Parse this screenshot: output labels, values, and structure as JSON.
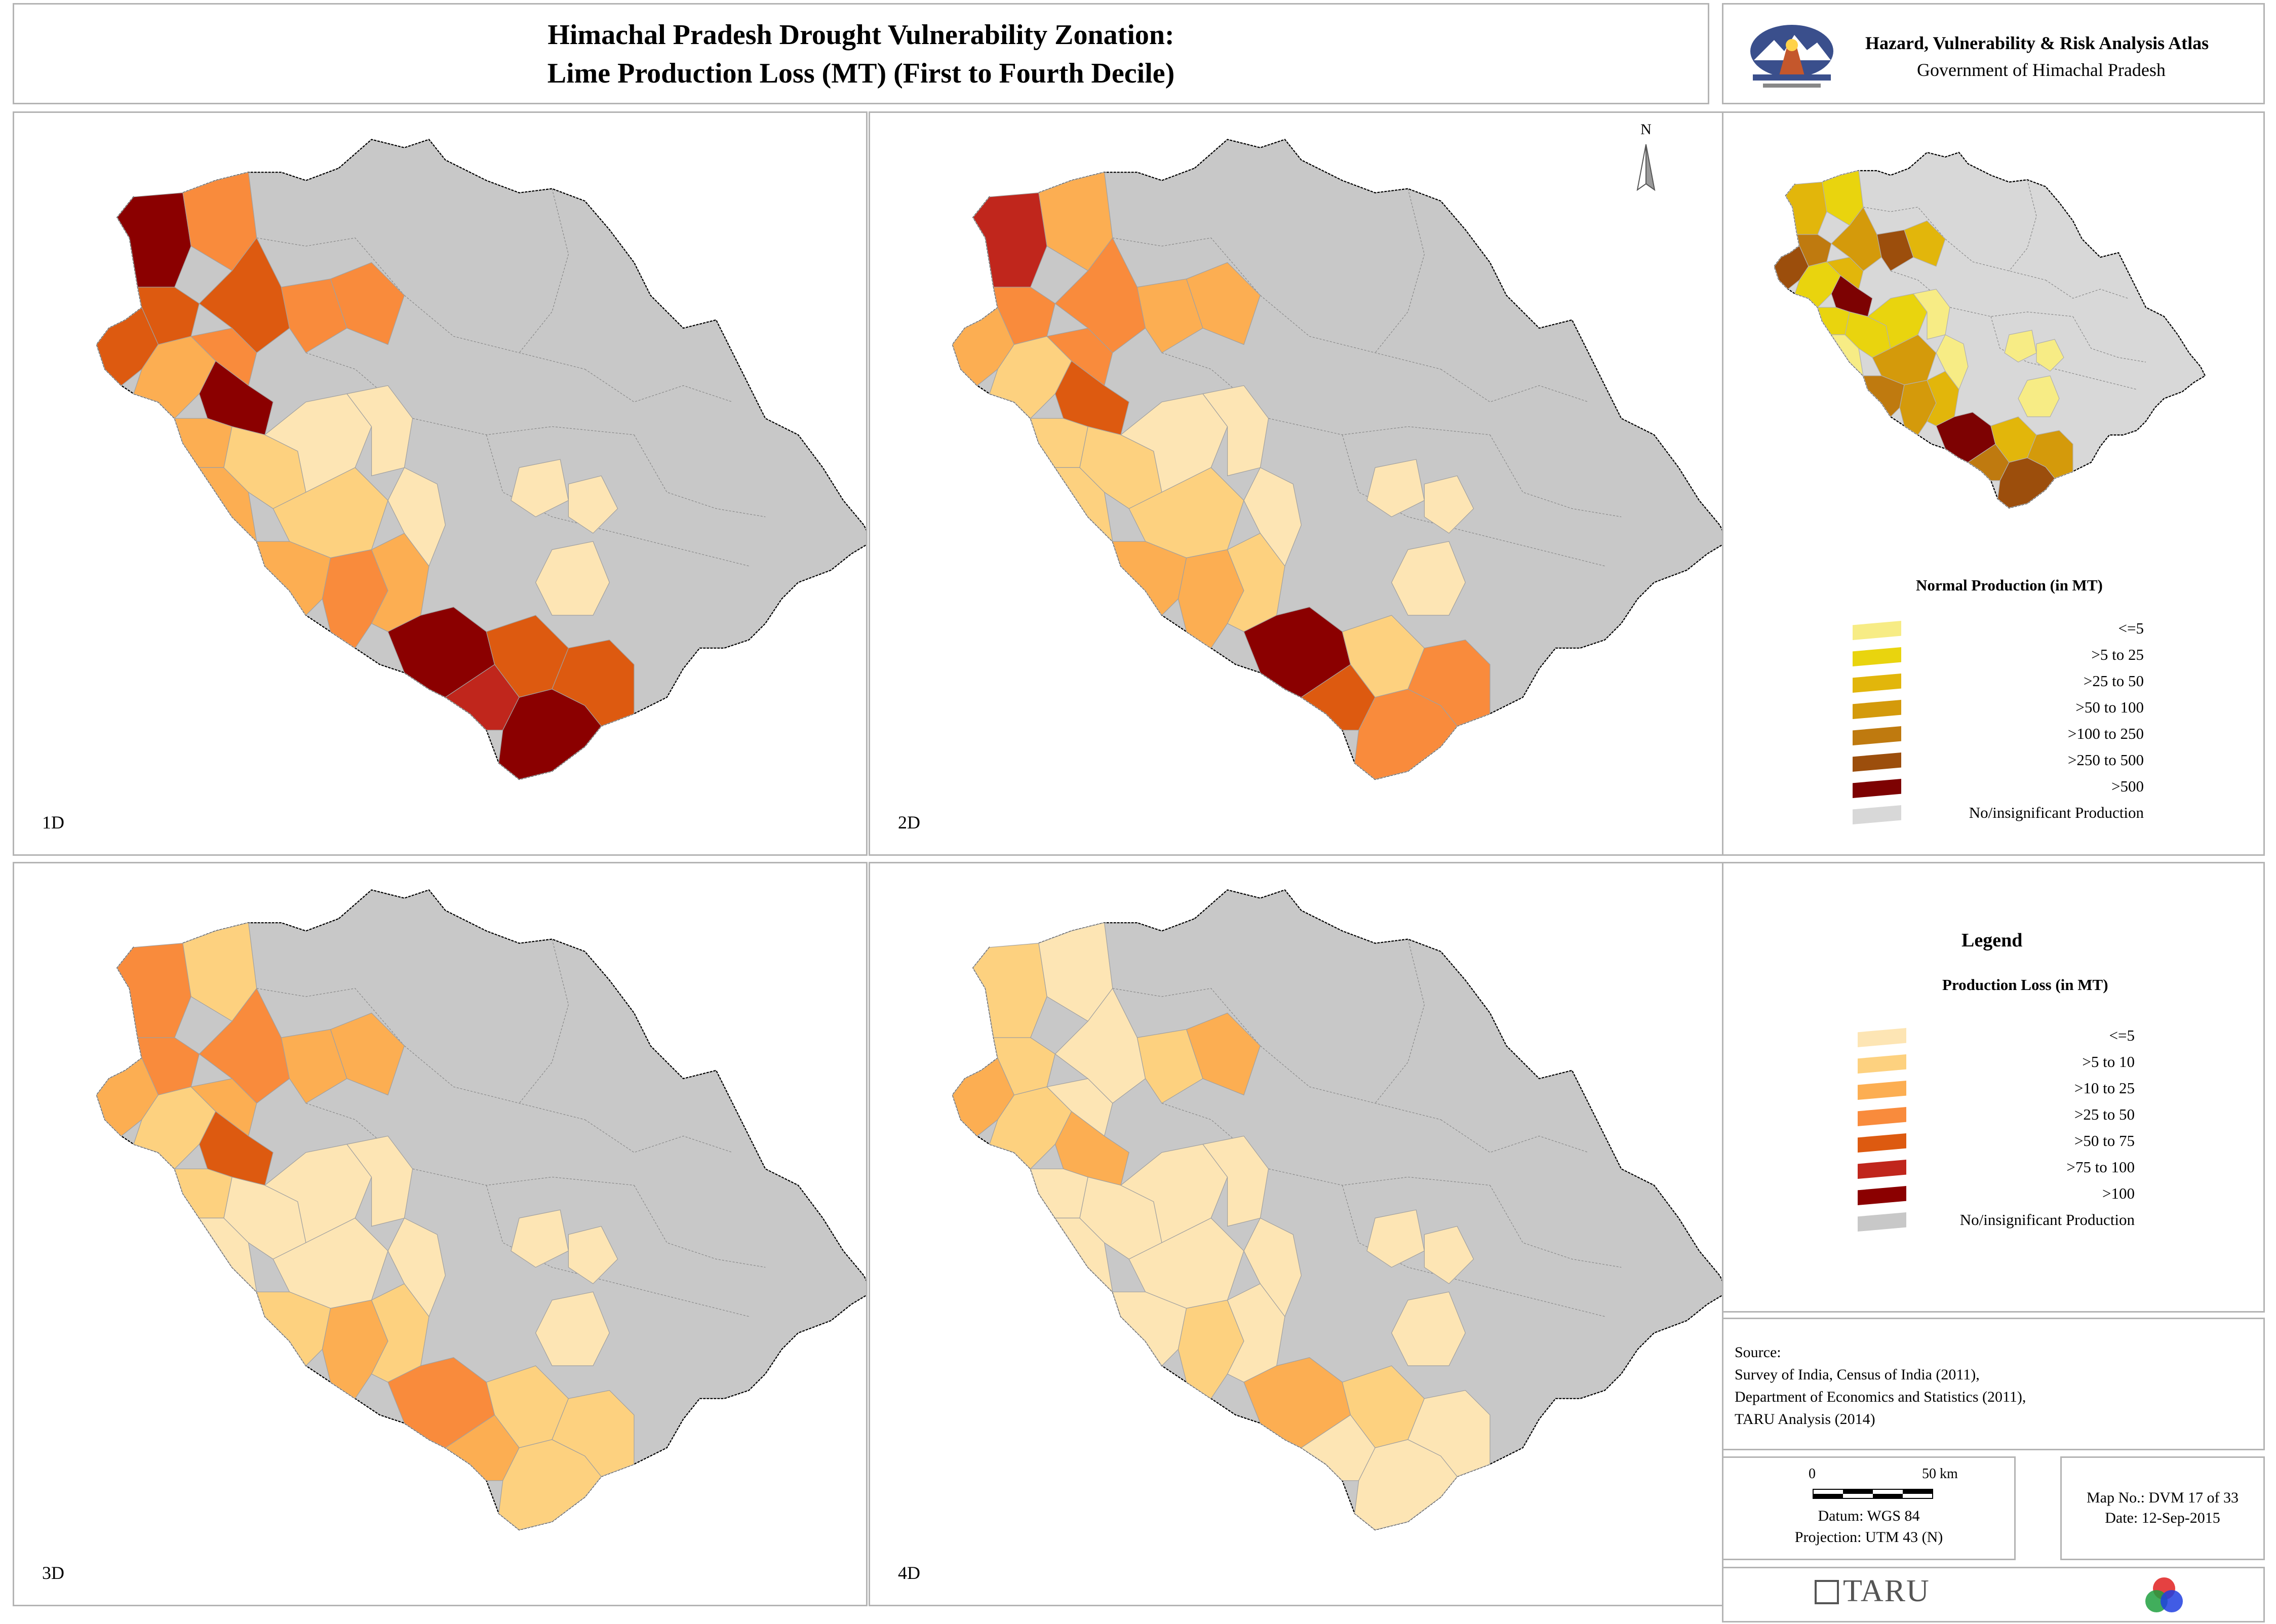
{
  "header": {
    "title_line1": "Himachal Pradesh Drought Vulnerability Zonation:",
    "title_line2": "Lime Production Loss (MT) (First to Fourth Decile)"
  },
  "atlas": {
    "title": "Hazard, Vulnerability & Risk Analysis Atlas",
    "subtitle": "Government of Himachal Pradesh",
    "emblem_icon": "himachal-emblem-icon"
  },
  "north_arrow": {
    "label": "N"
  },
  "maps": [
    {
      "label": "1D"
    },
    {
      "label": "2D"
    },
    {
      "label": "3D"
    },
    {
      "label": "4D"
    }
  ],
  "colors": {
    "no_production": "#c8c8c8",
    "border": "#000000",
    "loss": [
      "#fde5b4",
      "#fdd17f",
      "#fcae52",
      "#f98b3c",
      "#dd5a10",
      "#c0261c",
      "#8b0000"
    ],
    "normal": [
      "#f7ec85",
      "#e9d40e",
      "#e2b60b",
      "#d49a0b",
      "#bf7a0f",
      "#9c4e0c",
      "#7d0202"
    ]
  },
  "overview_legend": {
    "title": "Normal Production (in MT)",
    "items": [
      {
        "label": "<=5",
        "color": "#f7ec85"
      },
      {
        "label": ">5 to 25",
        "color": "#e9d40e"
      },
      {
        "label": ">25 to 50",
        "color": "#e2b60b"
      },
      {
        "label": ">50 to 100",
        "color": "#d49a0b"
      },
      {
        "label": ">100 to 250",
        "color": "#bf7a0f"
      },
      {
        "label": ">250 to 500",
        "color": "#9c4e0c"
      },
      {
        "label": ">500",
        "color": "#7d0202"
      },
      {
        "label": "No/insignificant Production",
        "color": "#d8d8d8"
      }
    ]
  },
  "legend": {
    "title": "Legend",
    "subtitle": "Production Loss (in MT)",
    "items": [
      {
        "label": "<=5",
        "color": "#fde5b4"
      },
      {
        "label": ">5 to 10",
        "color": "#fdd17f"
      },
      {
        "label": ">10 to 25",
        "color": "#fcae52"
      },
      {
        "label": ">25 to 50",
        "color": "#f98b3c"
      },
      {
        "label": ">50 to 75",
        "color": "#dd5a10"
      },
      {
        "label": ">75 to 100",
        "color": "#c0261c"
      },
      {
        "label": ">100",
        "color": "#8b0000"
      },
      {
        "label": "No/insignificant Production",
        "color": "#c8c8c8"
      }
    ]
  },
  "source": {
    "heading": "Source:",
    "lines": [
      "Survey of India, Census of India (2011),",
      "Department of Economics and Statistics (2011),",
      "TARU Analysis (2014)"
    ]
  },
  "scale": {
    "start": "0",
    "end": "50 km",
    "datum": "Datum: WGS 84",
    "projection": "Projection: UTM 43 (N)"
  },
  "map_info": {
    "map_no": "Map No.: DVM 17 of 33",
    "date": "Date: 12-Sep-2015"
  },
  "footer": {
    "taru_logo": "TARU"
  }
}
